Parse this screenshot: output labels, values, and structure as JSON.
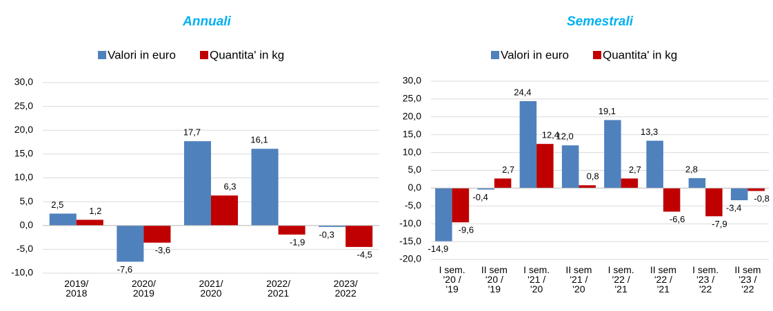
{
  "chart_data": [
    {
      "type": "bar",
      "title": "Annuali",
      "categories": [
        "2019/\n2018",
        "2020/\n2019",
        "2021/\n2020",
        "2022/\n2021",
        "2023/\n2022"
      ],
      "series": [
        {
          "name": "Valori in euro",
          "color": "#4f81bd",
          "values": [
            2.5,
            -7.6,
            17.7,
            16.1,
            -0.3
          ],
          "value_labels": [
            "2,5",
            "-7,6",
            "17,7",
            "16,1",
            "-0,3"
          ]
        },
        {
          "name": "Quantita' in kg",
          "color": "#c00000",
          "values": [
            1.2,
            -3.6,
            6.3,
            -1.9,
            -4.5
          ],
          "value_labels": [
            "1,2",
            "-3,6",
            "6,3",
            "-1,9",
            "-4,5"
          ]
        }
      ],
      "ylim": [
        -10,
        30
      ],
      "yticks": [
        {
          "value": -10,
          "label": "-10,0"
        },
        {
          "value": -5,
          "label": "-5,0"
        },
        {
          "value": 0,
          "label": "0,0"
        },
        {
          "value": 5,
          "label": "5,0"
        },
        {
          "value": 10,
          "label": "10,0"
        },
        {
          "value": 15,
          "label": "15,0"
        },
        {
          "value": 20,
          "label": "20,0"
        },
        {
          "value": 25,
          "label": "25,0"
        },
        {
          "value": 30,
          "label": "30,0"
        }
      ],
      "grid": true,
      "legend": "top"
    },
    {
      "type": "bar",
      "title": "Semestrali",
      "categories": [
        "I sem.\n'20 /\n'19",
        "II sem\n'20 /\n'19",
        "I sem.\n'21 /\n'20",
        "II sem\n'21 /\n'20",
        "I sem.\n'22 /\n'21",
        "II sem\n'22 /\n'21",
        "I sem.\n'23 /\n'22",
        "II sem\n'23 /\n'22"
      ],
      "series": [
        {
          "name": "Valori in euro",
          "color": "#4f81bd",
          "values": [
            -14.9,
            -0.4,
            24.4,
            12.0,
            19.1,
            13.3,
            2.8,
            -3.4
          ],
          "value_labels": [
            "-14,9",
            "-0,4",
            "24,4",
            "12,0",
            "19,1",
            "13,3",
            "2,8",
            "-3,4"
          ]
        },
        {
          "name": "Quantita' in kg",
          "color": "#c00000",
          "values": [
            -9.6,
            2.7,
            12.4,
            0.8,
            2.7,
            -6.6,
            -7.9,
            -0.8
          ],
          "value_labels": [
            "-9,6",
            "2,7",
            "12,4",
            "0,8",
            "2,7",
            "-6,6",
            "-7,9",
            "-0,8"
          ]
        }
      ],
      "ylim": [
        -20,
        30
      ],
      "yticks": [
        {
          "value": -20,
          "label": "-20,0"
        },
        {
          "value": -15,
          "label": "-15,0"
        },
        {
          "value": -10,
          "label": "-10,0"
        },
        {
          "value": -5,
          "label": "-5,0"
        },
        {
          "value": 0,
          "label": "0,0"
        },
        {
          "value": 5,
          "label": "5,0"
        },
        {
          "value": 10,
          "label": "10,0"
        },
        {
          "value": 15,
          "label": "15,0"
        },
        {
          "value": 20,
          "label": "20,0"
        },
        {
          "value": 25,
          "label": "25,0"
        },
        {
          "value": 30,
          "label": "30,0"
        }
      ],
      "grid": true,
      "legend": "top"
    }
  ]
}
